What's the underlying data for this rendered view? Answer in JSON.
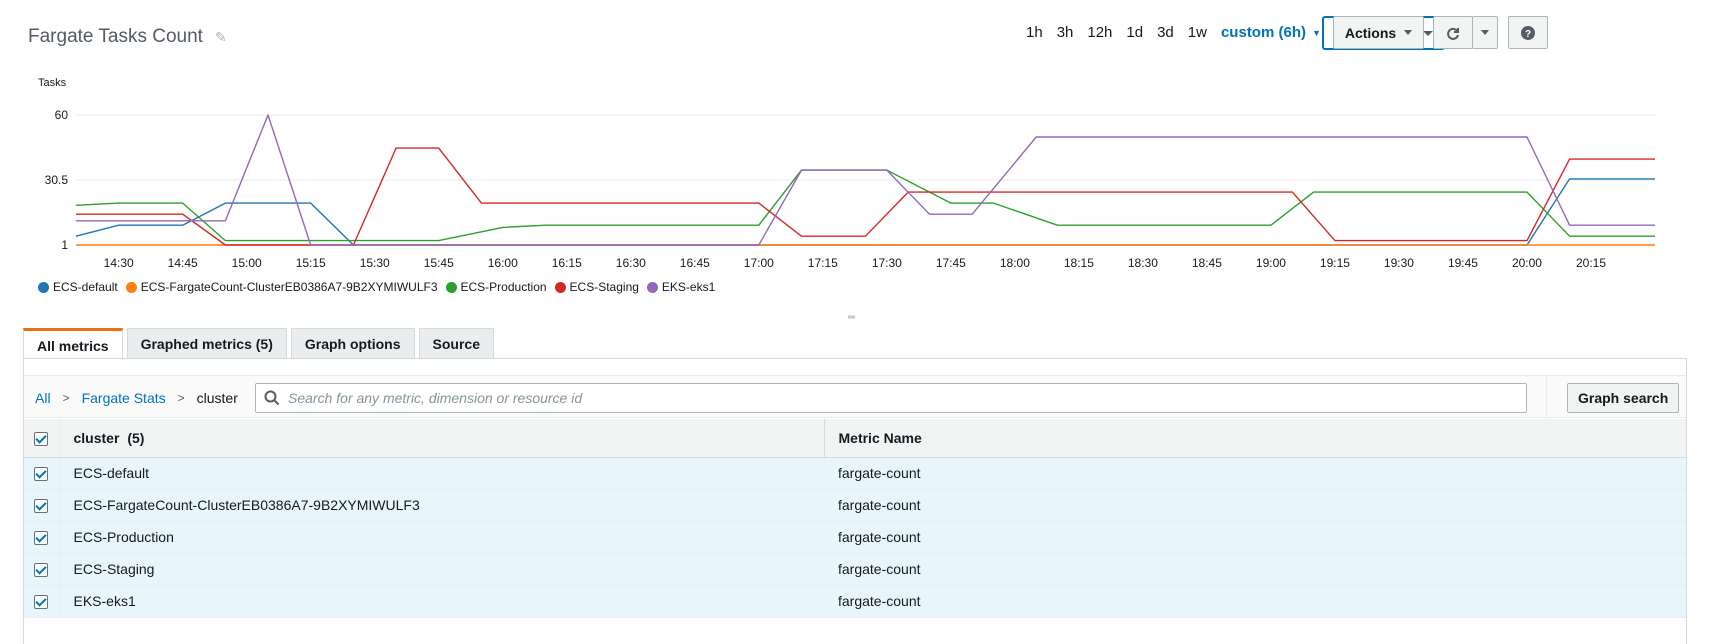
{
  "header": {
    "title": "Fargate Tasks Count",
    "time_ranges": [
      "1h",
      "3h",
      "12h",
      "1d",
      "3d",
      "1w"
    ],
    "custom_range": "custom (6h)",
    "graph_type": "Line",
    "actions_label": "Actions"
  },
  "chart_data": {
    "type": "line",
    "ylabel": "Tasks",
    "yticks": [
      60,
      30.5,
      1
    ],
    "ylim": [
      1,
      60
    ],
    "x_tick_labels": [
      "14:30",
      "14:45",
      "15:00",
      "15:15",
      "15:30",
      "15:45",
      "16:00",
      "16:15",
      "16:30",
      "16:45",
      "17:00",
      "17:15",
      "17:30",
      "17:45",
      "18:00",
      "18:15",
      "18:30",
      "18:45",
      "19:00",
      "19:15",
      "19:30",
      "19:45",
      "20:00",
      "20:15"
    ],
    "x_range": [
      "14:20",
      "20:30"
    ],
    "grid": true,
    "legend_position": "bottom-left",
    "series": [
      {
        "name": "ECS-default",
        "color": "#1f77b4",
        "points": [
          [
            "14:20",
            5
          ],
          [
            "14:30",
            10
          ],
          [
            "14:45",
            10
          ],
          [
            "14:55",
            20
          ],
          [
            "15:10",
            20
          ],
          [
            "15:15",
            20
          ],
          [
            "15:25",
            1
          ],
          [
            "17:00",
            1
          ],
          [
            "19:15",
            1
          ],
          [
            "20:00",
            1
          ],
          [
            "20:10",
            31
          ],
          [
            "20:30",
            31
          ]
        ]
      },
      {
        "name": "ECS-FargateCount-ClusterEB0386A7-9B2XYMIWULF3",
        "color": "#ff7f0e",
        "points": [
          [
            "14:20",
            1
          ],
          [
            "20:30",
            1
          ]
        ]
      },
      {
        "name": "ECS-Production",
        "color": "#2ca02c",
        "points": [
          [
            "14:20",
            19
          ],
          [
            "14:30",
            20
          ],
          [
            "14:45",
            20
          ],
          [
            "14:55",
            3
          ],
          [
            "15:00",
            3
          ],
          [
            "15:45",
            3
          ],
          [
            "16:00",
            9
          ],
          [
            "16:10",
            10
          ],
          [
            "17:00",
            10
          ],
          [
            "17:10",
            35
          ],
          [
            "17:30",
            35
          ],
          [
            "17:45",
            20
          ],
          [
            "17:55",
            20
          ],
          [
            "18:10",
            10
          ],
          [
            "18:45",
            10
          ],
          [
            "19:00",
            10
          ],
          [
            "19:10",
            25
          ],
          [
            "20:00",
            25
          ],
          [
            "20:10",
            5
          ],
          [
            "20:30",
            5
          ]
        ]
      },
      {
        "name": "ECS-Staging",
        "color": "#d62728",
        "points": [
          [
            "14:20",
            15
          ],
          [
            "14:30",
            15
          ],
          [
            "14:45",
            15
          ],
          [
            "14:55",
            1
          ],
          [
            "15:25",
            1
          ],
          [
            "15:35",
            45
          ],
          [
            "15:45",
            45
          ],
          [
            "15:55",
            20
          ],
          [
            "16:10",
            20
          ],
          [
            "17:00",
            20
          ],
          [
            "17:10",
            5
          ],
          [
            "17:25",
            5
          ],
          [
            "17:35",
            25
          ],
          [
            "18:00",
            25
          ],
          [
            "19:05",
            25
          ],
          [
            "19:15",
            3
          ],
          [
            "20:00",
            3
          ],
          [
            "20:10",
            40
          ],
          [
            "20:30",
            40
          ]
        ]
      },
      {
        "name": "EKS-eks1",
        "color": "#9467bd",
        "points": [
          [
            "14:20",
            12
          ],
          [
            "14:30",
            12
          ],
          [
            "14:45",
            12
          ],
          [
            "14:55",
            12
          ],
          [
            "15:05",
            60
          ],
          [
            "15:15",
            1
          ],
          [
            "15:30",
            1
          ],
          [
            "17:00",
            1
          ],
          [
            "17:10",
            35
          ],
          [
            "17:30",
            35
          ],
          [
            "17:40",
            15
          ],
          [
            "17:50",
            15
          ],
          [
            "18:05",
            50
          ],
          [
            "18:50",
            50
          ],
          [
            "20:00",
            50
          ],
          [
            "20:10",
            10
          ],
          [
            "20:30",
            10
          ]
        ]
      }
    ]
  },
  "tabs": [
    {
      "label": "All metrics",
      "active": true
    },
    {
      "label": "Graphed metrics (5)",
      "active": false
    },
    {
      "label": "Graph options",
      "active": false
    },
    {
      "label": "Source",
      "active": false
    }
  ],
  "breadcrumb": {
    "all": "All",
    "namespace": "Fargate Stats",
    "dimension": "cluster"
  },
  "search": {
    "placeholder": "Search for any metric, dimension or resource id"
  },
  "graph_search_label": "Graph search",
  "table": {
    "col_cluster": "cluster",
    "col_count": "(5)",
    "col_metric": "Metric Name",
    "rows": [
      {
        "cluster": "ECS-default",
        "metric": "fargate-count"
      },
      {
        "cluster": "ECS-FargateCount-ClusterEB0386A7-9B2XYMIWULF3",
        "metric": "fargate-count"
      },
      {
        "cluster": "ECS-Production",
        "metric": "fargate-count"
      },
      {
        "cluster": "ECS-Staging",
        "metric": "fargate-count"
      },
      {
        "cluster": "EKS-eks1",
        "metric": "fargate-count"
      }
    ]
  }
}
